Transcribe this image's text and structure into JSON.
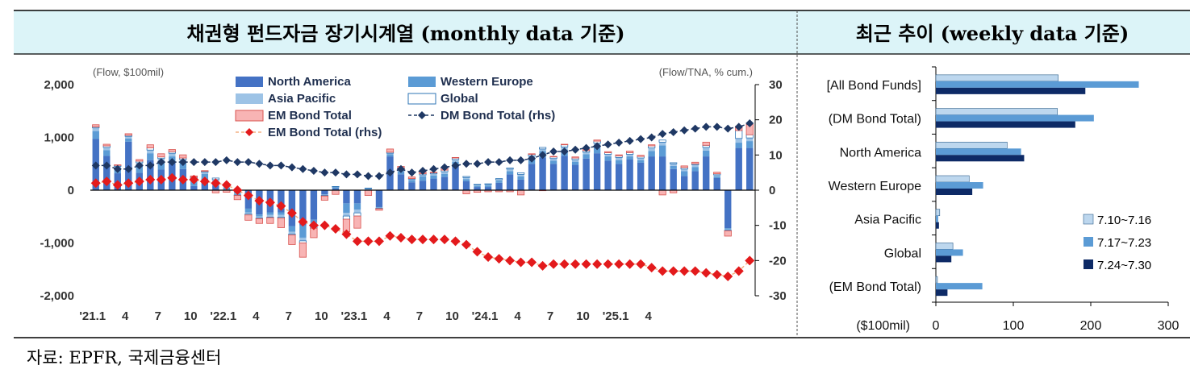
{
  "header": {
    "left_title": "채권형 펀드자금 장기시계열 (monthly data 기준)",
    "right_title": "최근 추이 (weekly data 기준)"
  },
  "source_note": "자료: EPFR, 국제금융센터",
  "colors": {
    "header_bg": "#dcf4f8",
    "north_america": "#4472c4",
    "western_europe": "#5b9bd5",
    "asia_pacific": "#9dc3e6",
    "global_fill": "#ffffff",
    "global_edge": "#2e75b6",
    "em_bond_total": "#f8b4b4",
    "em_bond_line": "#e31a1c",
    "dm_bond_line": "#1f3864",
    "week1": "#bdd7ee",
    "week2": "#5b9bd5",
    "week3": "#0d2a66"
  },
  "chart_data": [
    {
      "type": "bar",
      "stacked": true,
      "left_unit_label": "(Flow, $100mil)",
      "right_unit_label": "(Flow/TNA, % cum.)",
      "ylim": [
        -2000,
        2000
      ],
      "yticks": [
        "2,000",
        "1,000",
        "0",
        "-1,000",
        "-2,000"
      ],
      "ylim_right": [
        -30,
        30
      ],
      "yticks_right": [
        "30",
        "20",
        "10",
        "0",
        "-10",
        "-20",
        "-30"
      ],
      "x_tick_labels": [
        "'21.1",
        "4",
        "7",
        "10",
        "'22.1",
        "4",
        "7",
        "10",
        "'23.1",
        "4",
        "7",
        "10",
        "'24.1",
        "4",
        "7",
        "10",
        "'25.1",
        "4"
      ],
      "legend": {
        "north_america": "North America",
        "western_europe": "Western Europe",
        "asia_pacific": "Asia Pacific",
        "global": "Global",
        "em_bond_total": "EM Bond Total",
        "dm_bond_total_rhs": "DM Bond Total (rhs)",
        "em_bond_total_rhs": "EM Bond Total (rhs)"
      },
      "series": {
        "north_america": [
          970,
          650,
          320,
          920,
          330,
          570,
          390,
          520,
          400,
          80,
          220,
          90,
          10,
          -30,
          -350,
          -460,
          -420,
          -420,
          -680,
          -670,
          -560,
          -80,
          30,
          -250,
          -250,
          10,
          -320,
          640,
          300,
          150,
          180,
          220,
          250,
          470,
          170,
          60,
          60,
          140,
          300,
          200,
          500,
          620,
          500,
          650,
          480,
          600,
          700,
          560,
          500,
          580,
          520,
          640,
          640,
          400,
          270,
          360,
          640,
          230,
          -720,
          800,
          800
        ],
        "western_europe": [
          150,
          110,
          90,
          60,
          140,
          130,
          150,
          120,
          130,
          120,
          90,
          70,
          40,
          -40,
          -70,
          -40,
          -50,
          -50,
          -110,
          -230,
          -60,
          -10,
          20,
          -180,
          -120,
          10,
          -10,
          40,
          60,
          40,
          80,
          60,
          60,
          70,
          40,
          20,
          30,
          40,
          60,
          60,
          110,
          120,
          60,
          120,
          60,
          80,
          140,
          80,
          70,
          60,
          50,
          100,
          210,
          60,
          90,
          80,
          110,
          30,
          -20,
          100,
          130
        ],
        "asia_pacific": [
          60,
          50,
          40,
          40,
          50,
          60,
          60,
          60,
          50,
          30,
          30,
          40,
          40,
          -20,
          -30,
          -30,
          -40,
          -40,
          -40,
          -60,
          -60,
          -10,
          10,
          -60,
          -60,
          10,
          -10,
          20,
          30,
          20,
          30,
          30,
          40,
          40,
          30,
          20,
          20,
          20,
          40,
          40,
          40,
          40,
          40,
          50,
          40,
          40,
          50,
          40,
          50,
          40,
          40,
          60,
          60,
          40,
          40,
          40,
          60,
          30,
          -20,
          80,
          60
        ],
        "global": [
          20,
          30,
          20,
          20,
          30,
          40,
          30,
          30,
          30,
          20,
          20,
          30,
          10,
          -10,
          -20,
          -10,
          -10,
          -20,
          -20,
          -40,
          -40,
          -10,
          10,
          -60,
          -60,
          10,
          -10,
          20,
          20,
          10,
          20,
          20,
          30,
          30,
          20,
          10,
          10,
          20,
          20,
          30,
          30,
          30,
          30,
          40,
          30,
          30,
          40,
          30,
          30,
          30,
          30,
          40,
          40,
          20,
          30,
          20,
          40,
          20,
          -10,
          150,
          60
        ],
        "em_bond_total": [
          40,
          30,
          10,
          30,
          30,
          60,
          60,
          40,
          60,
          20,
          10,
          -50,
          -40,
          -80,
          -100,
          -90,
          -110,
          -180,
          -180,
          -270,
          -180,
          -80,
          -80,
          -240,
          -230,
          -100,
          -30,
          60,
          40,
          30,
          30,
          10,
          40,
          10,
          -70,
          -40,
          -30,
          -30,
          -30,
          -90,
          10,
          -10,
          10,
          10,
          20,
          20,
          20,
          20,
          20,
          30,
          20,
          20,
          -90,
          -50,
          30,
          30,
          60,
          30,
          -100,
          80,
          200
        ],
        "dm_bond_total_rhs": [
          7,
          7,
          6,
          6,
          7,
          7,
          8,
          8,
          8,
          8,
          8,
          8,
          8.5,
          8,
          8,
          7.5,
          7,
          7,
          6.5,
          6,
          5.5,
          5,
          5,
          4.5,
          4.5,
          4,
          4,
          5,
          6,
          5,
          5.5,
          6,
          6.5,
          7,
          7.5,
          7.5,
          8,
          8,
          8.5,
          8.5,
          9,
          10,
          11,
          11,
          11.5,
          12,
          12.5,
          13,
          13.5,
          14,
          14.5,
          15,
          16,
          16.5,
          17,
          17.5,
          18,
          18,
          17.5,
          18,
          19
        ],
        "em_bond_total_rhs": [
          2,
          2.5,
          1.5,
          2,
          2.5,
          3,
          3,
          3.5,
          3,
          3,
          2.5,
          2,
          1.5,
          0,
          -1.5,
          -3,
          -3.5,
          -4.5,
          -6.5,
          -9,
          -10,
          -10,
          -11,
          -12.5,
          -14.5,
          -14.5,
          -14.5,
          -13,
          -13.5,
          -14,
          -14,
          -14,
          -14,
          -14.5,
          -15.5,
          -17.5,
          -19,
          -19.5,
          -20,
          -20.5,
          -20.5,
          -21.5,
          -21,
          -21,
          -21,
          -21,
          -21,
          -21,
          -21,
          -21,
          -21,
          -22,
          -23,
          -23,
          -23,
          -23,
          -23.5,
          -24,
          -24.5,
          -23,
          -20
        ]
      }
    },
    {
      "type": "bar",
      "orientation": "horizontal",
      "xlabel": "($100mil)",
      "xlim": [
        0,
        300
      ],
      "xticks": [
        "0",
        "100",
        "200",
        "300"
      ],
      "categories": [
        "[All Bond Funds]",
        "(DM Bond Total)",
        "North America",
        "Western Europe",
        "Asia Pacific",
        "Global",
        "(EM Bond Total)"
      ],
      "series": [
        {
          "name": "7.10~7.16",
          "values": [
            158,
            157,
            92,
            43,
            5,
            22,
            2
          ]
        },
        {
          "name": "7.17~7.23",
          "values": [
            262,
            204,
            110,
            61,
            3,
            35,
            60
          ]
        },
        {
          "name": "7.24~7.30",
          "values": [
            193,
            180,
            114,
            47,
            4,
            20,
            15
          ]
        }
      ]
    }
  ]
}
